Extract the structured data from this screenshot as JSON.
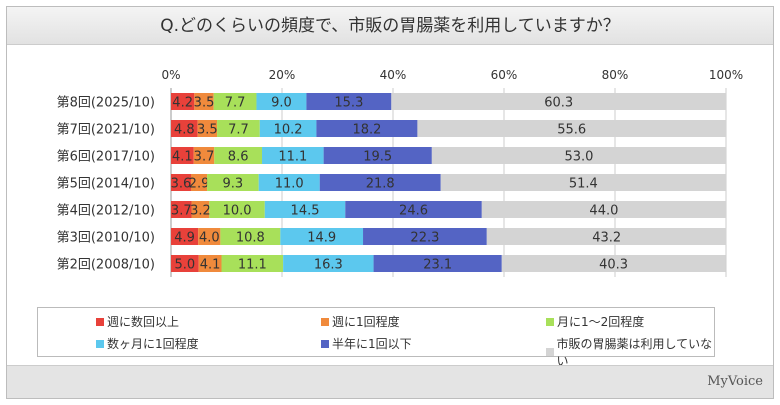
{
  "title": "Q.どのくらいの頻度で、市販の胃腸薬を利用していますか？",
  "logo": "MyVoice",
  "chart_data": {
    "type": "bar",
    "orientation": "horizontal-stacked-100",
    "title": "Q.どのくらいの頻度で、市販の胃腸薬を利用していますか？",
    "xlim": [
      0,
      100
    ],
    "x_ticks": [
      "0%",
      "20%",
      "40%",
      "60%",
      "80%",
      "100%"
    ],
    "categories": [
      "第8回(2025/10)",
      "第7回(2021/10)",
      "第6回(2017/10)",
      "第5回(2014/10)",
      "第4回(2012/10)",
      "第3回(2010/10)",
      "第2回(2008/10)"
    ],
    "series": [
      {
        "name": "週に数回以上",
        "color": "#e8413a",
        "values": [
          4.2,
          4.8,
          4.1,
          3.6,
          3.7,
          4.9,
          5.0
        ]
      },
      {
        "name": "週に1回程度",
        "color": "#f08a3c",
        "values": [
          3.5,
          3.5,
          3.7,
          2.9,
          3.2,
          4.0,
          4.1
        ]
      },
      {
        "name": "月に1～2回程度",
        "color": "#a8e05a",
        "values": [
          7.7,
          7.7,
          8.6,
          9.3,
          10.0,
          10.8,
          11.1
        ]
      },
      {
        "name": "数ヶ月に1回程度",
        "color": "#5cc8ee",
        "values": [
          9.0,
          10.2,
          11.1,
          11.0,
          14.5,
          14.9,
          16.3
        ]
      },
      {
        "name": "半年に1回以下",
        "color": "#5464c4",
        "values": [
          15.3,
          18.2,
          19.5,
          21.8,
          24.6,
          22.3,
          23.1
        ]
      },
      {
        "name": "市販の胃腸薬は利用していない",
        "color": "#d4d4d4",
        "values": [
          60.3,
          55.6,
          53.0,
          51.4,
          44.0,
          43.2,
          40.3
        ]
      }
    ],
    "legend": "bottom",
    "grid": true
  }
}
